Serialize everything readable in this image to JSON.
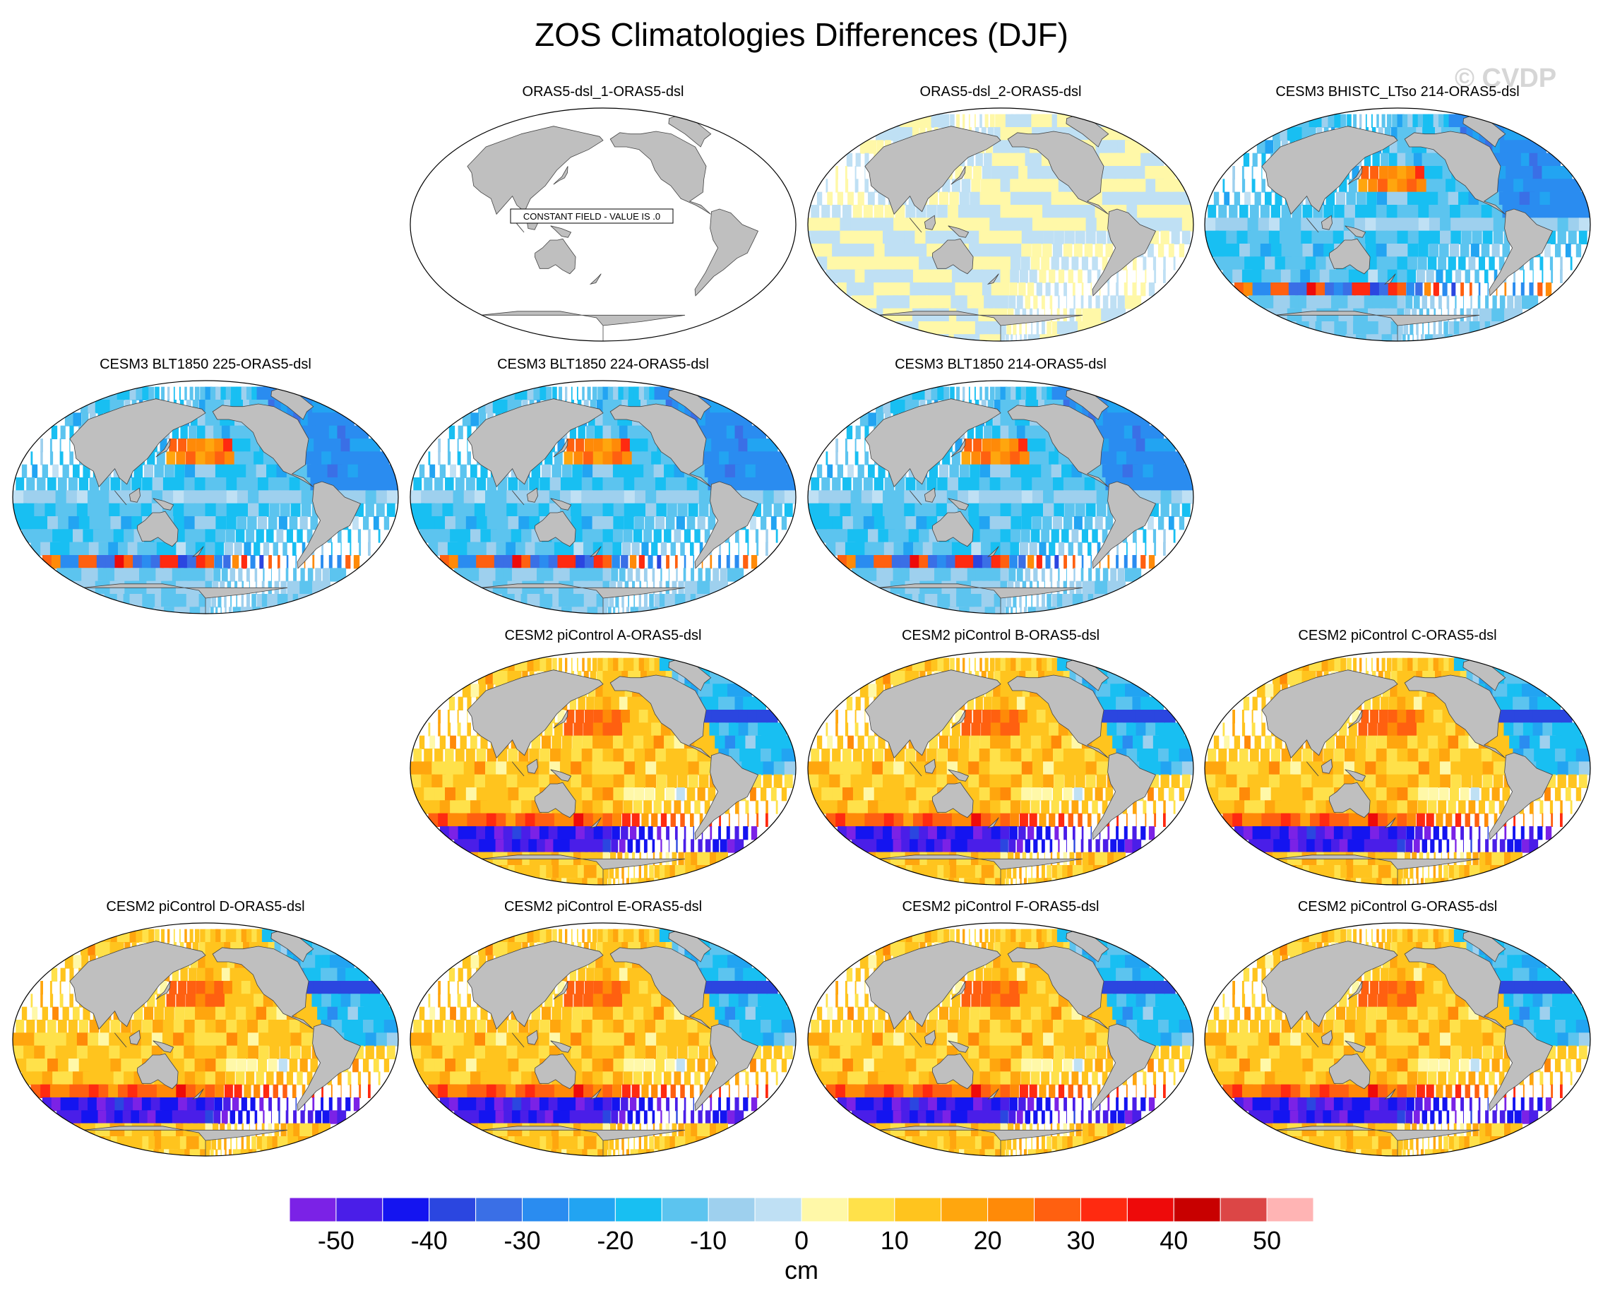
{
  "title": "ZOS Climatologies Differences (DJF)",
  "watermark": "© CVDP",
  "colors": {
    "land": "#bfbfbf",
    "constant_field": "#ffffff",
    "outline": "#444444"
  },
  "chart_data": {
    "type": "heatmap",
    "projection": "Robinson (Pacific-centered global map)",
    "units": "cm",
    "colorbar": {
      "ticks": [
        "-50",
        "-40",
        "-30",
        "-20",
        "-10",
        "0",
        "10",
        "20",
        "30",
        "40",
        "50"
      ],
      "levels": [
        -55,
        -50,
        -45,
        -40,
        -35,
        -30,
        -25,
        -20,
        -15,
        -10,
        -5,
        0,
        5,
        10,
        15,
        20,
        25,
        30,
        35,
        40,
        45,
        50,
        55
      ],
      "colors": [
        "#7b22e6",
        "#4a1ee8",
        "#1414f0",
        "#2b46e0",
        "#3a6fe6",
        "#2a8cf0",
        "#22a4f2",
        "#18bff2",
        "#5cc4ef",
        "#9ed0ee",
        "#bfe0f4",
        "#fff8a8",
        "#ffe14a",
        "#ffc41e",
        "#ffa60e",
        "#ff8a08",
        "#ff6010",
        "#ff2a10",
        "#ee0a0a",
        "#c80000",
        "#dc4646",
        "#ffb4b4"
      ]
    },
    "panels": [
      {
        "title": "ORAS5-dsl_1-ORAS5-dsl",
        "note": "CONSTANT FIELD - VALUE IS .0",
        "pattern": "constant"
      },
      {
        "title": "ORAS5-dsl_2-ORAS5-dsl",
        "pattern": "near-zero"
      },
      {
        "title": "CESM3 BHISTC_LTso 214-ORAS5-dsl",
        "pattern": "cesm3"
      },
      {
        "title": "CESM3 BLT1850 225-ORAS5-dsl",
        "pattern": "cesm3"
      },
      {
        "title": "CESM3 BLT1850 224-ORAS5-dsl",
        "pattern": "cesm3"
      },
      {
        "title": "CESM3 BLT1850 214-ORAS5-dsl",
        "pattern": "cesm3"
      },
      {
        "title": "CESM2 piControl A-ORAS5-dsl",
        "pattern": "cesm2"
      },
      {
        "title": "CESM2 piControl B-ORAS5-dsl",
        "pattern": "cesm2"
      },
      {
        "title": "CESM2 piControl C-ORAS5-dsl",
        "pattern": "cesm2"
      },
      {
        "title": "CESM2 piControl D-ORAS5-dsl",
        "pattern": "cesm2"
      },
      {
        "title": "CESM2 piControl E-ORAS5-dsl",
        "pattern": "cesm2"
      },
      {
        "title": "CESM2 piControl F-ORAS5-dsl",
        "pattern": "cesm2"
      },
      {
        "title": "CESM2 piControl G-ORAS5-dsl",
        "pattern": "cesm2"
      }
    ]
  }
}
